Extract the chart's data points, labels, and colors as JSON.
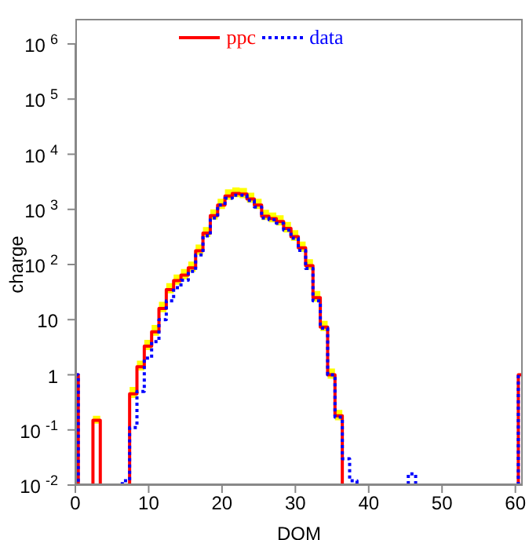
{
  "chart_data": {
    "type": "step",
    "xlabel": "DOM",
    "ylabel": "charge",
    "log": "y",
    "xlim": [
      0,
      61
    ],
    "xticks": [
      0,
      10,
      20,
      30,
      40,
      50,
      60
    ],
    "ylim": [
      0.01,
      1000000
    ],
    "yticks": [
      {
        "value": 0.01,
        "label": "10$^{-2}$"
      },
      {
        "value": 0.1,
        "label": "10$^{-1}$"
      },
      1,
      10,
      {
        "value": 100,
        "label": "10$^{2}$"
      },
      {
        "value": 1000,
        "label": "10$^{3}$"
      },
      {
        "value": 10000,
        "label": "10$^{4}$"
      },
      {
        "value": 100000,
        "label": "10$^{5}$"
      },
      {
        "value": 1000000,
        "label": "10$^{6}$"
      }
    ],
    "legend": "top",
    "grid": false,
    "marker": "none",
    "series": [
      {
        "name": "ppc",
        "color": "#ff0000",
        "line_style": "solid",
        "x": [
          0,
          0.4,
          2.4,
          3.4,
          7.4,
          8.4,
          9.4,
          10.4,
          11.4,
          12.4,
          13.4,
          14.4,
          15.4,
          16.4,
          17.4,
          18.4,
          19.4,
          20.4,
          21.4,
          22.4,
          23.4,
          24.4,
          25.4,
          26.4,
          27.4,
          28.4,
          29.4,
          30.4,
          31.4,
          32.4,
          33.4,
          34.4,
          35.4,
          36.4,
          60.4,
          61
        ],
        "values": [
          1,
          0.01,
          0.15,
          0.01,
          0.45,
          1.4,
          3.3,
          6,
          16,
          35,
          51,
          64,
          87,
          178,
          370,
          770,
          1200,
          1750,
          1950,
          1900,
          1550,
          1200,
          750,
          680,
          600,
          450,
          320,
          200,
          95,
          25,
          7.3,
          1,
          0.18,
          0.01,
          1,
          1
        ],
        "upper": [
          1,
          0.01,
          0.18,
          0.01,
          0.6,
          1.8,
          4.3,
          8,
          21,
          46,
          66,
          83,
          113,
          230,
          480,
          1000,
          1560,
          2300,
          2500,
          2450,
          2000,
          1560,
          980,
          880,
          780,
          590,
          420,
          260,
          125,
          33,
          9.5,
          1.3,
          0.23,
          0.01,
          1,
          1
        ],
        "lower": [
          1,
          0.01,
          0.13,
          0.01,
          0.38,
          1.2,
          2.8,
          5.1,
          13.6,
          30,
          43,
          54,
          74,
          151,
          315,
          655,
          1020,
          1490,
          1660,
          1600,
          1320,
          1020,
          640,
          580,
          510,
          380,
          270,
          170,
          81,
          21,
          6.2,
          0.85,
          0.15,
          0.01,
          1,
          1
        ]
      },
      {
        "name": "data",
        "color": "#0000ff",
        "line_style": "dotted",
        "x": [
          0,
          0.4,
          6.4,
          7.4,
          8.4,
          9.4,
          10.4,
          11.4,
          12.4,
          13.4,
          14.4,
          15.4,
          16.4,
          17.4,
          18.4,
          19.4,
          20.4,
          21.4,
          22.4,
          23.4,
          24.4,
          25.4,
          26.4,
          27.4,
          28.4,
          29.4,
          30.4,
          31.4,
          32.4,
          33.4,
          34.4,
          35.4,
          36.4,
          37.4,
          38.4,
          45.4,
          46.4,
          60.4,
          61
        ],
        "values": [
          1,
          0.01,
          0.012,
          0.11,
          0.5,
          2,
          4,
          10,
          22,
          38,
          52,
          75,
          150,
          330,
          700,
          1200,
          1600,
          1800,
          1800,
          1450,
          1100,
          700,
          650,
          560,
          420,
          300,
          180,
          85,
          22,
          7,
          1,
          0.17,
          0.03,
          0.012,
          0.01,
          0.016,
          0.01,
          1,
          1
        ]
      }
    ]
  }
}
